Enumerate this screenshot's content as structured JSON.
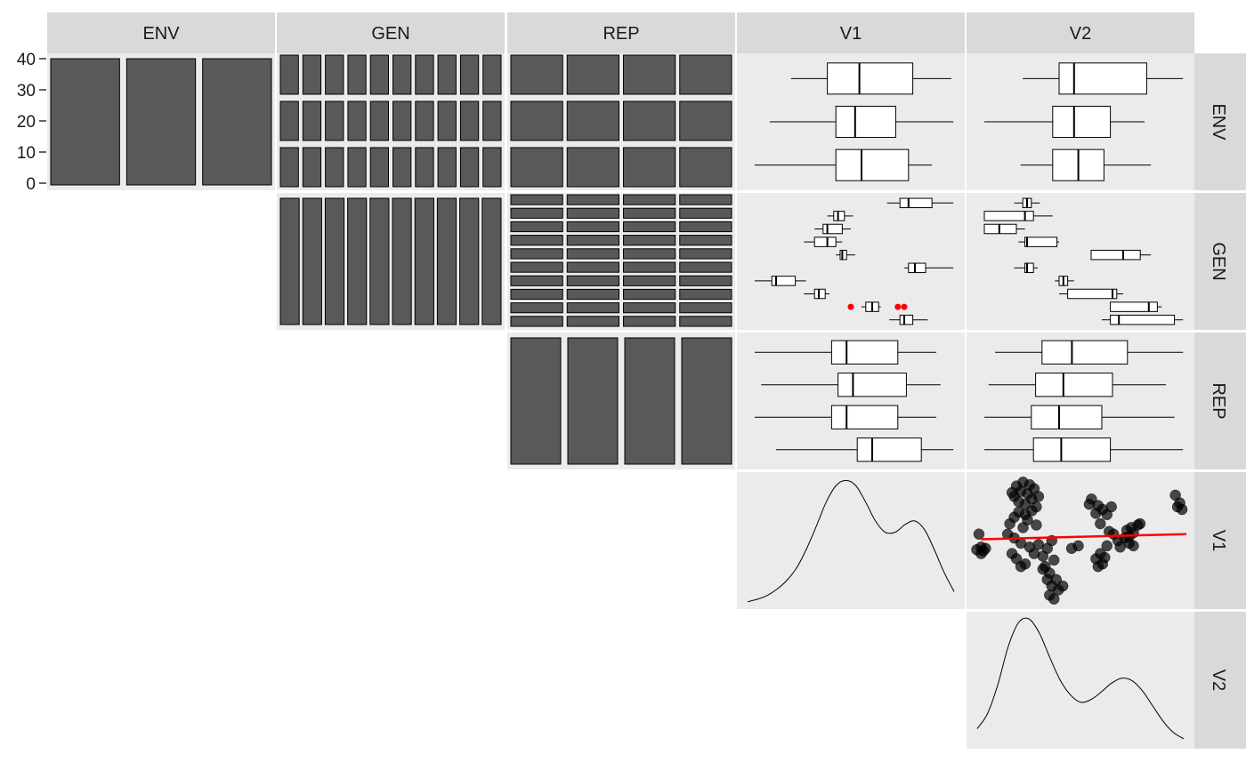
{
  "chart_data": {
    "type": "pairs-matrix",
    "variables": [
      "ENV",
      "GEN",
      "REP",
      "V1",
      "V2"
    ],
    "column_strips": [
      "ENV",
      "GEN",
      "REP",
      "V1",
      "V2"
    ],
    "row_strips": [
      "ENV",
      "GEN",
      "REP",
      "V1",
      "V2"
    ],
    "y_axis_ticks": [
      "0",
      "10",
      "20",
      "30",
      "40"
    ],
    "colors": {
      "panel_bg": "#ebebeb",
      "strip_bg": "#d9d9d9",
      "bar_fill": "#595959",
      "outlier": "#ff0000",
      "smooth_line": "#ff0000",
      "point": "#000000"
    },
    "levels": {
      "ENV": 3,
      "GEN": 10,
      "REP": 4
    },
    "panels": {
      "ENV_ENV": {
        "type": "bar",
        "values": [
          40,
          40,
          40
        ],
        "ylim": [
          0,
          42
        ]
      },
      "ENV_GEN": {
        "type": "bar-tile",
        "rows": 3,
        "cols": 10
      },
      "ENV_REP": {
        "type": "bar-tile",
        "rows": 3,
        "cols": 4
      },
      "GEN_GEN": {
        "type": "bar",
        "values": [
          12,
          12,
          12,
          12,
          12,
          12,
          12,
          12,
          12,
          12
        ]
      },
      "GEN_REP": {
        "type": "bar-tile",
        "rows": 10,
        "cols": 4
      },
      "REP_REP": {
        "type": "bar",
        "values": [
          30,
          30,
          30,
          30
        ]
      },
      "V1_density": {
        "type": "density",
        "curve": [
          0.03,
          0.05,
          0.08,
          0.13,
          0.2,
          0.3,
          0.45,
          0.63,
          0.82,
          0.95,
          0.99,
          0.95,
          0.82,
          0.67,
          0.58,
          0.58,
          0.64,
          0.67,
          0.6,
          0.44,
          0.26,
          0.11
        ]
      },
      "V2_density": {
        "type": "density",
        "curve": [
          0.13,
          0.25,
          0.48,
          0.78,
          0.97,
          1.0,
          0.89,
          0.7,
          0.52,
          0.4,
          0.34,
          0.36,
          0.42,
          0.49,
          0.53,
          0.51,
          0.43,
          0.31,
          0.19,
          0.1,
          0.05
        ]
      },
      "ENV_V1": {
        "type": "boxplot",
        "boxes": [
          {
            "lo": 0.22,
            "q1": 0.39,
            "med": 0.54,
            "q3": 0.79,
            "hi": 0.97
          },
          {
            "lo": 0.12,
            "q1": 0.43,
            "med": 0.52,
            "q3": 0.71,
            "hi": 0.98
          },
          {
            "lo": 0.05,
            "q1": 0.43,
            "med": 0.55,
            "q3": 0.77,
            "hi": 0.88
          }
        ]
      },
      "ENV_V2": {
        "type": "boxplot",
        "boxes": [
          {
            "lo": 0.23,
            "q1": 0.4,
            "med": 0.47,
            "q3": 0.81,
            "hi": 0.98
          },
          {
            "lo": 0.05,
            "q1": 0.37,
            "med": 0.47,
            "q3": 0.64,
            "hi": 0.8
          },
          {
            "lo": 0.22,
            "q1": 0.37,
            "med": 0.49,
            "q3": 0.61,
            "hi": 0.83
          }
        ]
      },
      "GEN_V1": {
        "type": "boxplot",
        "boxes": [
          {
            "lo": 0.67,
            "q1": 0.73,
            "med": 0.77,
            "q3": 0.88,
            "hi": 0.98
          },
          {
            "lo": 0.39,
            "q1": 0.42,
            "med": 0.44,
            "q3": 0.47,
            "hi": 0.51
          },
          {
            "lo": 0.33,
            "q1": 0.37,
            "med": 0.39,
            "q3": 0.46,
            "hi": 0.5
          },
          {
            "lo": 0.28,
            "q1": 0.33,
            "med": 0.39,
            "q3": 0.43,
            "hi": 0.46
          },
          {
            "lo": 0.43,
            "q1": 0.45,
            "med": 0.46,
            "q3": 0.48,
            "hi": 0.52
          },
          {
            "lo": 0.75,
            "q1": 0.77,
            "med": 0.8,
            "q3": 0.85,
            "hi": 0.98
          },
          {
            "lo": 0.05,
            "q1": 0.13,
            "med": 0.15,
            "q3": 0.24,
            "hi": 0.29
          },
          {
            "lo": 0.28,
            "q1": 0.33,
            "med": 0.35,
            "q3": 0.38,
            "hi": 0.4
          },
          {
            "lo": 0.55,
            "q1": 0.57,
            "med": 0.6,
            "q3": 0.63,
            "hi": 0.64
          },
          {
            "lo": 0.68,
            "q1": 0.73,
            "med": 0.75,
            "q3": 0.79,
            "hi": 0.86
          }
        ],
        "outliers": [
          {
            "row": 8,
            "x": 0.5
          },
          {
            "row": 8,
            "x": 0.72
          },
          {
            "row": 8,
            "x": 0.75
          }
        ]
      },
      "GEN_V2": {
        "type": "boxplot",
        "boxes": [
          {
            "lo": 0.19,
            "q1": 0.23,
            "med": 0.25,
            "q3": 0.27,
            "hi": 0.31
          },
          {
            "lo": 0.05,
            "q1": 0.05,
            "med": 0.24,
            "q3": 0.28,
            "hi": 0.37
          },
          {
            "lo": 0.05,
            "q1": 0.05,
            "med": 0.12,
            "q3": 0.2,
            "hi": 0.24
          },
          {
            "lo": 0.21,
            "q1": 0.24,
            "med": 0.25,
            "q3": 0.39,
            "hi": 0.4
          },
          {
            "lo": 0.55,
            "q1": 0.55,
            "med": 0.7,
            "q3": 0.78,
            "hi": 0.83
          },
          {
            "lo": 0.19,
            "q1": 0.24,
            "med": 0.25,
            "q3": 0.28,
            "hi": 0.3
          },
          {
            "lo": 0.38,
            "q1": 0.4,
            "med": 0.42,
            "q3": 0.44,
            "hi": 0.47
          },
          {
            "lo": 0.4,
            "q1": 0.44,
            "med": 0.65,
            "q3": 0.67,
            "hi": 0.7
          },
          {
            "lo": 0.64,
            "q1": 0.64,
            "med": 0.82,
            "q3": 0.86,
            "hi": 0.88
          },
          {
            "lo": 0.6,
            "q1": 0.64,
            "med": 0.68,
            "q3": 0.94,
            "hi": 0.98
          }
        ]
      },
      "REP_V1": {
        "type": "boxplot",
        "boxes": [
          {
            "lo": 0.05,
            "q1": 0.41,
            "med": 0.48,
            "q3": 0.72,
            "hi": 0.9
          },
          {
            "lo": 0.08,
            "q1": 0.44,
            "med": 0.51,
            "q3": 0.76,
            "hi": 0.92
          },
          {
            "lo": 0.05,
            "q1": 0.41,
            "med": 0.48,
            "q3": 0.72,
            "hi": 0.9
          },
          {
            "lo": 0.15,
            "q1": 0.53,
            "med": 0.6,
            "q3": 0.83,
            "hi": 0.98
          }
        ]
      },
      "REP_V2": {
        "type": "boxplot",
        "boxes": [
          {
            "lo": 0.1,
            "q1": 0.32,
            "med": 0.46,
            "q3": 0.72,
            "hi": 0.98
          },
          {
            "lo": 0.07,
            "q1": 0.29,
            "med": 0.42,
            "q3": 0.65,
            "hi": 0.9
          },
          {
            "lo": 0.05,
            "q1": 0.27,
            "med": 0.4,
            "q3": 0.6,
            "hi": 0.94
          },
          {
            "lo": 0.05,
            "q1": 0.28,
            "med": 0.41,
            "q3": 0.64,
            "hi": 0.98
          }
        ]
      },
      "V1_V2": {
        "type": "scatter",
        "smooth": [
          [
            0.05,
            0.51
          ],
          [
            0.98,
            0.55
          ]
        ],
        "points": [
          [
            0.04,
            0.55
          ],
          [
            0.05,
            0.45
          ],
          [
            0.06,
            0.42
          ],
          [
            0.03,
            0.43
          ],
          [
            0.07,
            0.44
          ],
          [
            0.05,
            0.4
          ],
          [
            0.19,
            0.87
          ],
          [
            0.2,
            0.84
          ],
          [
            0.21,
            0.92
          ],
          [
            0.22,
            0.8
          ],
          [
            0.23,
            0.88
          ],
          [
            0.24,
            0.95
          ],
          [
            0.25,
            0.78
          ],
          [
            0.26,
            0.86
          ],
          [
            0.27,
            0.93
          ],
          [
            0.28,
            0.82
          ],
          [
            0.29,
            0.9
          ],
          [
            0.3,
            0.76
          ],
          [
            0.31,
            0.84
          ],
          [
            0.25,
            0.7
          ],
          [
            0.22,
            0.72
          ],
          [
            0.2,
            0.68
          ],
          [
            0.28,
            0.73
          ],
          [
            0.26,
            0.66
          ],
          [
            0.24,
            0.6
          ],
          [
            0.3,
            0.62
          ],
          [
            0.18,
            0.63
          ],
          [
            0.17,
            0.55
          ],
          [
            0.2,
            0.52
          ],
          [
            0.23,
            0.48
          ],
          [
            0.19,
            0.4
          ],
          [
            0.21,
            0.36
          ],
          [
            0.23,
            0.3
          ],
          [
            0.25,
            0.32
          ],
          [
            0.27,
            0.45
          ],
          [
            0.29,
            0.4
          ],
          [
            0.31,
            0.47
          ],
          [
            0.33,
            0.38
          ],
          [
            0.34,
            0.3
          ],
          [
            0.36,
            0.25
          ],
          [
            0.38,
            0.35
          ],
          [
            0.35,
            0.2
          ],
          [
            0.37,
            0.15
          ],
          [
            0.39,
            0.2
          ],
          [
            0.36,
            0.08
          ],
          [
            0.38,
            0.05
          ],
          [
            0.4,
            0.12
          ],
          [
            0.33,
            0.28
          ],
          [
            0.35,
            0.44
          ],
          [
            0.37,
            0.5
          ],
          [
            0.42,
            0.15
          ],
          [
            0.46,
            0.44
          ],
          [
            0.49,
            0.46
          ],
          [
            0.54,
            0.78
          ],
          [
            0.55,
            0.82
          ],
          [
            0.57,
            0.71
          ],
          [
            0.58,
            0.77
          ],
          [
            0.6,
            0.74
          ],
          [
            0.62,
            0.7
          ],
          [
            0.64,
            0.76
          ],
          [
            0.59,
            0.63
          ],
          [
            0.63,
            0.57
          ],
          [
            0.65,
            0.55
          ],
          [
            0.57,
            0.36
          ],
          [
            0.59,
            0.4
          ],
          [
            0.6,
            0.32
          ],
          [
            0.58,
            0.3
          ],
          [
            0.61,
            0.37
          ],
          [
            0.62,
            0.46
          ],
          [
            0.67,
            0.5
          ],
          [
            0.68,
            0.45
          ],
          [
            0.7,
            0.52
          ],
          [
            0.72,
            0.48
          ],
          [
            0.71,
            0.58
          ],
          [
            0.73,
            0.6
          ],
          [
            0.74,
            0.56
          ],
          [
            0.76,
            0.62
          ],
          [
            0.74,
            0.46
          ],
          [
            0.72,
            0.53
          ],
          [
            0.77,
            0.63
          ],
          [
            0.93,
            0.85
          ],
          [
            0.94,
            0.76
          ],
          [
            0.96,
            0.74
          ],
          [
            0.95,
            0.79
          ]
        ]
      }
    }
  }
}
